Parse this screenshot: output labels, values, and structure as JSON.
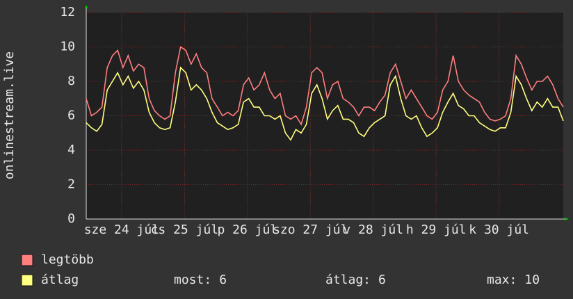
{
  "chart_data": {
    "type": "line",
    "ylabel": "onlinestream.live",
    "xlim": [
      0,
      182
    ],
    "xticks": [
      {
        "value": 13.5,
        "label": "sze 24 júl"
      },
      {
        "value": 37.5,
        "label": "cs 25 júl"
      },
      {
        "value": 61.5,
        "label": "p 26 júl"
      },
      {
        "value": 85.5,
        "label": "szo 27 júl"
      },
      {
        "value": 109.5,
        "label": "v 28 júl"
      },
      {
        "value": 133.5,
        "label": "h 29 júl"
      },
      {
        "value": 157.5,
        "label": "k 30 júl"
      }
    ],
    "ylim": [
      0,
      12
    ],
    "yticks": [
      0,
      2,
      4,
      6,
      8,
      10,
      12
    ],
    "grid": true,
    "x": [
      0,
      2,
      4,
      6,
      8,
      10,
      12,
      14,
      16,
      18,
      20,
      22,
      24,
      26,
      28,
      30,
      32,
      34,
      36,
      38,
      40,
      42,
      44,
      46,
      48,
      50,
      52,
      54,
      56,
      58,
      60,
      62,
      64,
      66,
      68,
      70,
      72,
      74,
      76,
      78,
      80,
      82,
      84,
      86,
      88,
      90,
      92,
      94,
      96,
      98,
      100,
      102,
      104,
      106,
      108,
      110,
      112,
      114,
      116,
      118,
      120,
      122,
      124,
      126,
      128,
      130,
      132,
      134,
      136,
      138,
      140,
      142,
      144,
      146,
      148,
      150,
      152,
      154,
      156,
      158,
      160,
      162,
      164,
      166,
      168,
      170,
      172,
      174,
      176,
      178,
      180,
      182
    ],
    "series": [
      {
        "name": "legtöbb",
        "color": "#ff7f7f",
        "values": [
          7.0,
          6.0,
          6.2,
          6.5,
          8.8,
          9.5,
          9.8,
          8.8,
          9.5,
          8.6,
          9.0,
          8.8,
          7.0,
          6.3,
          6.0,
          5.8,
          6.0,
          8.5,
          10.0,
          9.8,
          9.0,
          9.6,
          8.8,
          8.5,
          7.0,
          6.5,
          6.0,
          6.2,
          6.0,
          6.3,
          7.8,
          8.2,
          7.5,
          7.8,
          8.5,
          7.5,
          7.0,
          7.3,
          6.0,
          5.8,
          6.0,
          5.5,
          6.5,
          8.5,
          8.8,
          8.5,
          7.0,
          7.8,
          8.0,
          7.0,
          6.8,
          6.5,
          6.0,
          6.5,
          6.5,
          6.3,
          6.8,
          7.2,
          8.5,
          9.0,
          8.0,
          7.0,
          7.5,
          7.0,
          6.5,
          6.0,
          5.8,
          6.2,
          7.5,
          8.0,
          9.5,
          8.0,
          7.5,
          7.2,
          7.0,
          6.8,
          6.2,
          5.8,
          5.7,
          5.8,
          6.0,
          7.0,
          9.5,
          9.0,
          8.2,
          7.5,
          8.0,
          8.0,
          8.3,
          7.8,
          7.0,
          6.5
        ]
      },
      {
        "name": "átlag",
        "color": "#ffff80",
        "values": [
          5.6,
          5.3,
          5.1,
          5.5,
          7.5,
          8.0,
          8.5,
          7.8,
          8.3,
          7.6,
          8.0,
          7.5,
          6.2,
          5.6,
          5.3,
          5.2,
          5.3,
          6.8,
          8.8,
          8.5,
          7.5,
          7.8,
          7.5,
          7.0,
          6.2,
          5.6,
          5.4,
          5.2,
          5.3,
          5.5,
          6.8,
          7.0,
          6.5,
          6.5,
          6.0,
          6.0,
          5.8,
          6.0,
          5.0,
          4.6,
          5.2,
          5.0,
          5.5,
          7.3,
          7.8,
          7.0,
          5.8,
          6.3,
          6.6,
          5.8,
          5.8,
          5.6,
          5.0,
          4.8,
          5.3,
          5.6,
          5.8,
          6.0,
          7.8,
          8.3,
          7.0,
          6.0,
          5.8,
          6.0,
          5.3,
          4.8,
          5.0,
          5.3,
          6.2,
          6.8,
          7.3,
          6.6,
          6.4,
          6.0,
          6.0,
          5.6,
          5.4,
          5.2,
          5.1,
          5.3,
          5.3,
          6.2,
          8.3,
          7.8,
          7.0,
          6.3,
          6.8,
          6.5,
          7.0,
          6.5,
          6.5,
          5.7
        ]
      }
    ],
    "stats": [
      {
        "label": "most:",
        "value": 6
      },
      {
        "label": "átlag:",
        "value": 6
      },
      {
        "label": "max:",
        "value": 10
      }
    ]
  }
}
